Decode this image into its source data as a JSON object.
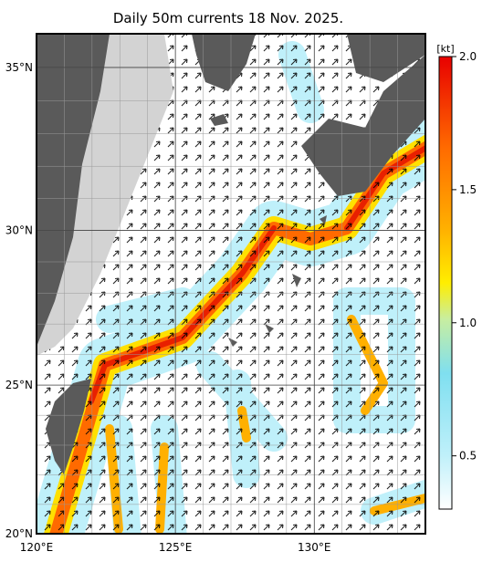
{
  "title": "Daily 50m currents 18 Nov. 2025.",
  "map": {
    "lon_range": [
      120,
      134
    ],
    "lat_range": [
      20,
      36
    ],
    "lon_ticks": [
      {
        "value": 120,
        "label": "120°E"
      },
      {
        "value": 125,
        "label": "125°E"
      },
      {
        "value": 130,
        "label": "130°E"
      }
    ],
    "lat_ticks": [
      {
        "value": 20,
        "label": "20°N"
      },
      {
        "value": 25,
        "label": "25°N"
      },
      {
        "value": 30,
        "label": "30°N"
      },
      {
        "value": 35,
        "label": "35°N"
      }
    ]
  },
  "colorbar": {
    "unit": "[kt]",
    "range": [
      0.3,
      2.0
    ],
    "ticks": [
      {
        "value": 2,
        "label": "2.0"
      },
      1.5,
      {
        "value": 1,
        "label": "1.0"
      },
      0.5
    ]
  }
}
